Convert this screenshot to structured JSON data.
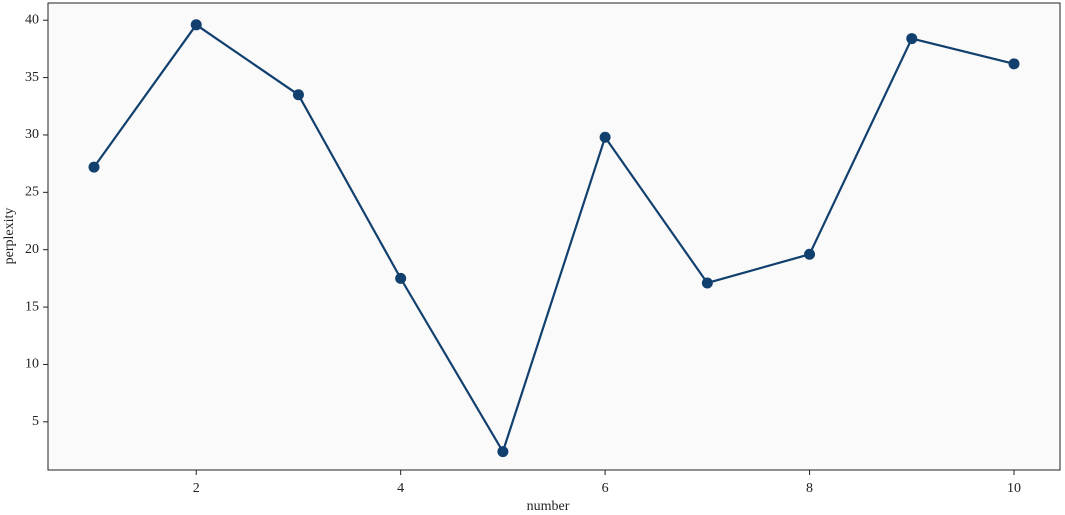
{
  "chart_data": {
    "type": "line",
    "xlabel": "number",
    "ylabel": "perplexity",
    "x": [
      1,
      2,
      3,
      4,
      5,
      6,
      7,
      8,
      9,
      10
    ],
    "series": [
      {
        "color": "#12406e",
        "values": [
          27.2,
          39.6,
          33.5,
          17.5,
          2.4,
          29.8,
          17.1,
          19.6,
          38.4,
          36.2
        ]
      }
    ],
    "xlim": [
      0.55,
      10.45
    ],
    "xticks": [
      2,
      4,
      6,
      8,
      10
    ],
    "ylim": [
      0.8,
      41.5
    ],
    "yticks": [
      5,
      10,
      15,
      20,
      25,
      30,
      35,
      40
    ]
  }
}
